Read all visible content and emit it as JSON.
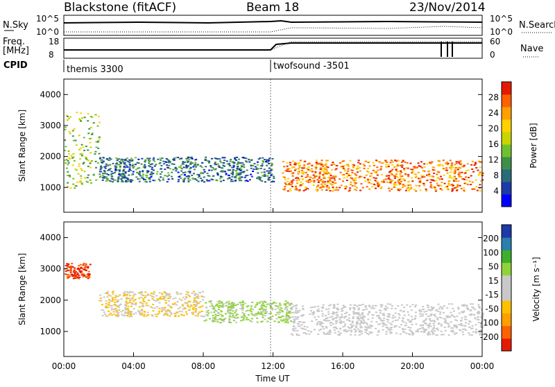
{
  "header": {
    "station": "Blackstone (fitACF)",
    "beam": "Beam 18",
    "date": "23/Nov/2014"
  },
  "summary": {
    "nsky_label": "N.Sky",
    "nsearch_label": "N.Search",
    "freq_label": "Freq.",
    "freq_unit": "[MHz]",
    "nave_label": "Nave",
    "cpid_label": "CPID",
    "left_ticks": [
      "10^5",
      "10^0"
    ],
    "right_ticks": [
      "10^5",
      "10^0"
    ],
    "freq_ticks": [
      "18",
      "8"
    ],
    "nave_ticks": [
      "60",
      "0"
    ]
  },
  "cpid": [
    {
      "name": "themis 3300",
      "start": "00:00"
    },
    {
      "name": "twofsound -3501",
      "start": "12:00"
    }
  ],
  "chart_data": [
    {
      "type": "heatmap",
      "title": "",
      "xlabel": "",
      "ylabel": "Slant Range [km]",
      "x_ticks": [
        "00:00",
        "04:00",
        "08:00",
        "12:00",
        "16:00",
        "20:00",
        "00:00"
      ],
      "y_ticks": [
        "1000",
        "2000",
        "3000",
        "4000"
      ],
      "ylim": [
        200,
        4500
      ],
      "colorbar": {
        "label": "Power [dB]",
        "ticks": [
          "28",
          "24",
          "20",
          "16",
          "12",
          "8",
          "4"
        ],
        "range": [
          0,
          30
        ],
        "colors": [
          "#0000ff",
          "#1c3aa8",
          "#2a6a7a",
          "#3f8f4a",
          "#6fc02f",
          "#c8d400",
          "#ffd200",
          "#ff9f00",
          "#ff6000",
          "#e41b00"
        ]
      },
      "features": [
        {
          "time_start": "00:00",
          "time_end": "02:00",
          "range_km": [
            1000,
            3500
          ],
          "value_db": 15
        },
        {
          "time_start": "02:00",
          "time_end": "12:00",
          "range_km": [
            1200,
            2000
          ],
          "value_db": 8
        },
        {
          "time_start": "12:30",
          "time_end": "24:00",
          "range_km": [
            900,
            1900
          ],
          "value_db": 24
        }
      ]
    },
    {
      "type": "heatmap",
      "title": "",
      "xlabel": "Time UT",
      "ylabel": "Slant Range [km]",
      "x_ticks": [
        "00:00",
        "04:00",
        "08:00",
        "12:00",
        "16:00",
        "20:00",
        "00:00"
      ],
      "y_ticks": [
        "1000",
        "2000",
        "3000",
        "4000"
      ],
      "ylim": [
        200,
        4500
      ],
      "colorbar": {
        "label": "Velocity [m s⁻¹]",
        "ticks": [
          "200",
          "100",
          "50",
          "15",
          "-15",
          "-50",
          "-100",
          "-200"
        ],
        "range": [
          -250,
          250
        ],
        "colors": [
          "#e41b00",
          "#ff6000",
          "#ff9f00",
          "#ffc000",
          "#c8c8c8",
          "#c8c8c8",
          "#8fd33a",
          "#3fae2a",
          "#2a7fb0",
          "#1c3aa8"
        ]
      },
      "features": [
        {
          "time_start": "00:00",
          "time_end": "01:30",
          "range_km": [
            2700,
            3200
          ],
          "value_ms": -200
        },
        {
          "time_start": "02:00",
          "time_end": "08:00",
          "range_km": [
            1500,
            2300
          ],
          "value_ms": -50
        },
        {
          "time_start": "08:00",
          "time_end": "13:00",
          "range_km": [
            1300,
            2000
          ],
          "value_ms": 60
        },
        {
          "time_start": "13:00",
          "time_end": "24:00",
          "range_km": [
            900,
            1900
          ],
          "value_ms": 0
        }
      ]
    }
  ]
}
